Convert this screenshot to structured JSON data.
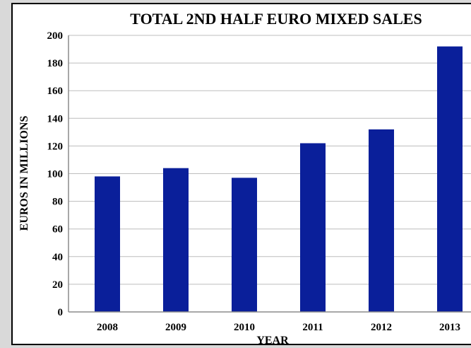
{
  "chart_data": {
    "type": "bar",
    "title": "TOTAL 2ND HALF EURO MIXED SALES",
    "xlabel": "YEAR",
    "ylabel": "EUROS IN MILLIONS",
    "categories": [
      "2008",
      "2009",
      "2010",
      "2011",
      "2012",
      "2013"
    ],
    "values": [
      98,
      104,
      97,
      122,
      132,
      192
    ],
    "ylim": [
      0,
      200
    ],
    "yticks": [
      "0",
      "20",
      "40",
      "60",
      "80",
      "100",
      "120",
      "140",
      "160",
      "180",
      "200"
    ],
    "grid": true,
    "legend": "none",
    "bar_color": "#0a1f9a"
  }
}
